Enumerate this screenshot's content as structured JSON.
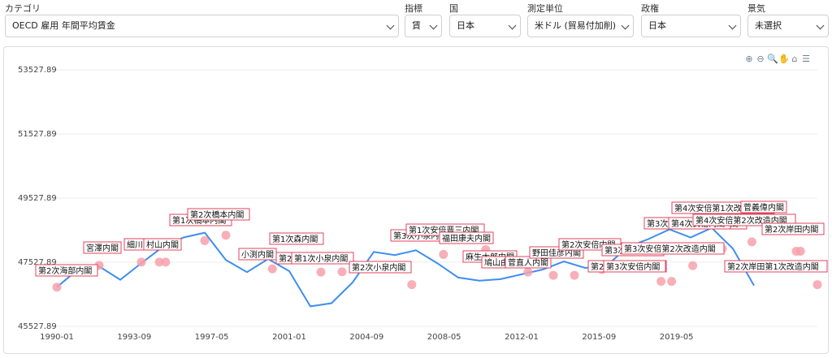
{
  "filters": {
    "category": {
      "label": "カテゴリ",
      "value": "OECD 雇用 年間平均賃金"
    },
    "indicator": {
      "label": "指標",
      "value": "賃"
    },
    "country": {
      "label": "国",
      "value": "日本"
    },
    "unit": {
      "label": "測定単位",
      "value": "米ドル (貿易付加削)"
    },
    "government": {
      "label": "政権",
      "value": "日本"
    },
    "economy": {
      "label": "景気",
      "value": "未選択"
    }
  },
  "toolbar": {
    "icons": [
      "zoom-in-icon",
      "zoom-out-icon",
      "magnify-icon",
      "pan-hand-icon",
      "home-icon",
      "menu-icon"
    ],
    "glyphs": [
      "⊕",
      "⊖",
      "🔍",
      "✋",
      "⌂",
      "☰"
    ]
  },
  "colors": {
    "line": "#3d8ef0",
    "point": "#f7a1ac",
    "annotation_border": "#e0435c"
  },
  "chart_data": {
    "type": "line",
    "yticks": [
      "53527.89",
      "51527.89",
      "49527.89",
      "47527.89",
      "45527.89"
    ],
    "ylim": [
      45527.89,
      53527.89
    ],
    "xticks": [
      "1990-01",
      "1993-09",
      "1997-05",
      "2001-01",
      "2004-09",
      "2008-05",
      "2012-01",
      "2015-09",
      "2019-05"
    ],
    "series": [
      {
        "x": [
          1990,
          1991,
          1992,
          1993,
          1994,
          1995,
          1996,
          1997,
          1998,
          1999,
          2000,
          2001,
          2002,
          2003,
          2004,
          2005,
          2006,
          2007,
          2008,
          2009,
          2010,
          2011,
          2012,
          2013,
          2014,
          2015,
          2016,
          2017,
          2018,
          2019,
          2020,
          2021,
          2022,
          2023
        ],
        "y": [
          46750,
          47300,
          47400,
          46980,
          47500,
          48000,
          48300,
          48450,
          47600,
          47220,
          47630,
          47250,
          46150,
          46250,
          46900,
          47850,
          47750,
          47900,
          47500,
          47050,
          46950,
          47000,
          47150,
          47300,
          47550,
          47350,
          47400,
          48000,
          48250,
          48550,
          48300,
          48600,
          47950,
          46800
        ]
      }
    ],
    "points": [
      {
        "x": 1990.0,
        "y": 46750
      },
      {
        "x": 1992.0,
        "y": 47430
      },
      {
        "x": 1994.0,
        "y": 47530
      },
      {
        "x": 1994.85,
        "y": 47530
      },
      {
        "x": 1995.15,
        "y": 47530
      },
      {
        "x": 1997.0,
        "y": 48200
      },
      {
        "x": 1998.0,
        "y": 48370
      },
      {
        "x": 2000.2,
        "y": 47320
      },
      {
        "x": 2002.5,
        "y": 47220
      },
      {
        "x": 2003.5,
        "y": 47230
      },
      {
        "x": 2006.8,
        "y": 46830
      },
      {
        "x": 2008.3,
        "y": 47770
      },
      {
        "x": 2010.3,
        "y": 47920
      },
      {
        "x": 2012.3,
        "y": 47220
      },
      {
        "x": 2013.5,
        "y": 47120
      },
      {
        "x": 2014.5,
        "y": 47120
      },
      {
        "x": 2015.8,
        "y": 47300
      },
      {
        "x": 2018.6,
        "y": 46930
      },
      {
        "x": 2019.1,
        "y": 46930
      },
      {
        "x": 2020.1,
        "y": 47420
      },
      {
        "x": 2021.2,
        "y": 47950
      },
      {
        "x": 2021.5,
        "y": 47950
      },
      {
        "x": 2022.9,
        "y": 48160
      },
      {
        "x": 2025.0,
        "y": 47870
      },
      {
        "x": 2025.2,
        "y": 47870
      },
      {
        "x": 2026.0,
        "y": 46830
      }
    ],
    "annotations": [
      {
        "text": "第2次海部内閣",
        "col": 1,
        "row": 0
      },
      {
        "text": "宮澤内閣",
        "col": 2,
        "row": 0
      },
      {
        "text": "細川内閣",
        "col": 3,
        "row": 0
      },
      {
        "text": "村山内閣",
        "col": 4,
        "row": 0
      },
      {
        "text": "第1次橋本内閣",
        "col": 5,
        "row": 0
      },
      {
        "text": "第2次橋本内閣",
        "col": 6,
        "row": 0
      },
      {
        "text": "小渕内閣",
        "col": 7,
        "row": 0
      },
      {
        "text": "第1次森内閣",
        "col": 8,
        "row": 0
      },
      {
        "text": "第2次森内閣",
        "col": 9,
        "row": 0
      },
      {
        "text": "第1次小泉内閣",
        "col": 10,
        "row": 0
      },
      {
        "text": "第2次小泉内閣",
        "col": 11,
        "row": 0
      },
      {
        "text": "第3次小泉内閣",
        "col": 12,
        "row": 0
      },
      {
        "text": "第1次安倍晋三内閣",
        "col": 13,
        "row": 0
      },
      {
        "text": "福田康夫内閣",
        "col": 14,
        "row": 0
      },
      {
        "text": "麻生太郎内閣",
        "col": 15,
        "row": 0
      },
      {
        "text": "鳩山由紀夫内閣",
        "col": 16,
        "row": 0
      },
      {
        "text": "菅直人内閣",
        "col": 17,
        "row": 0
      },
      {
        "text": "野田佳彦内閣",
        "col": 18,
        "row": 0
      },
      {
        "text": "第2次安倍内閣",
        "col": 19,
        "row": 0
      },
      {
        "text": "第2次安倍改造内閣",
        "col": 20,
        "row": 0
      },
      {
        "text": "第3次安倍内閣",
        "col": 21,
        "row": 0
      },
      {
        "text": "第3次安倍内閣",
        "col": 22,
        "row": 0
      },
      {
        "text": "第3次安倍第2次改造内閣",
        "col": 23,
        "row": 0
      },
      {
        "text": "第3次安倍第3次改造内閣",
        "col": 24,
        "row": 0
      },
      {
        "text": "第4次安倍内閣",
        "col": 25,
        "row": 0
      },
      {
        "text": "第4次安倍第1次改造内閣",
        "col": 26,
        "row": 0
      },
      {
        "text": "第4次安倍第2次改造内閣",
        "col": 27,
        "row": 0
      },
      {
        "text": "菅義偉内閣",
        "col": 28,
        "row": 0
      },
      {
        "text": "第2次岸田内閣",
        "col": 29,
        "row": 0
      },
      {
        "text": "第2次岸田第1次改造内閣",
        "col": 30,
        "row": 0
      }
    ]
  }
}
